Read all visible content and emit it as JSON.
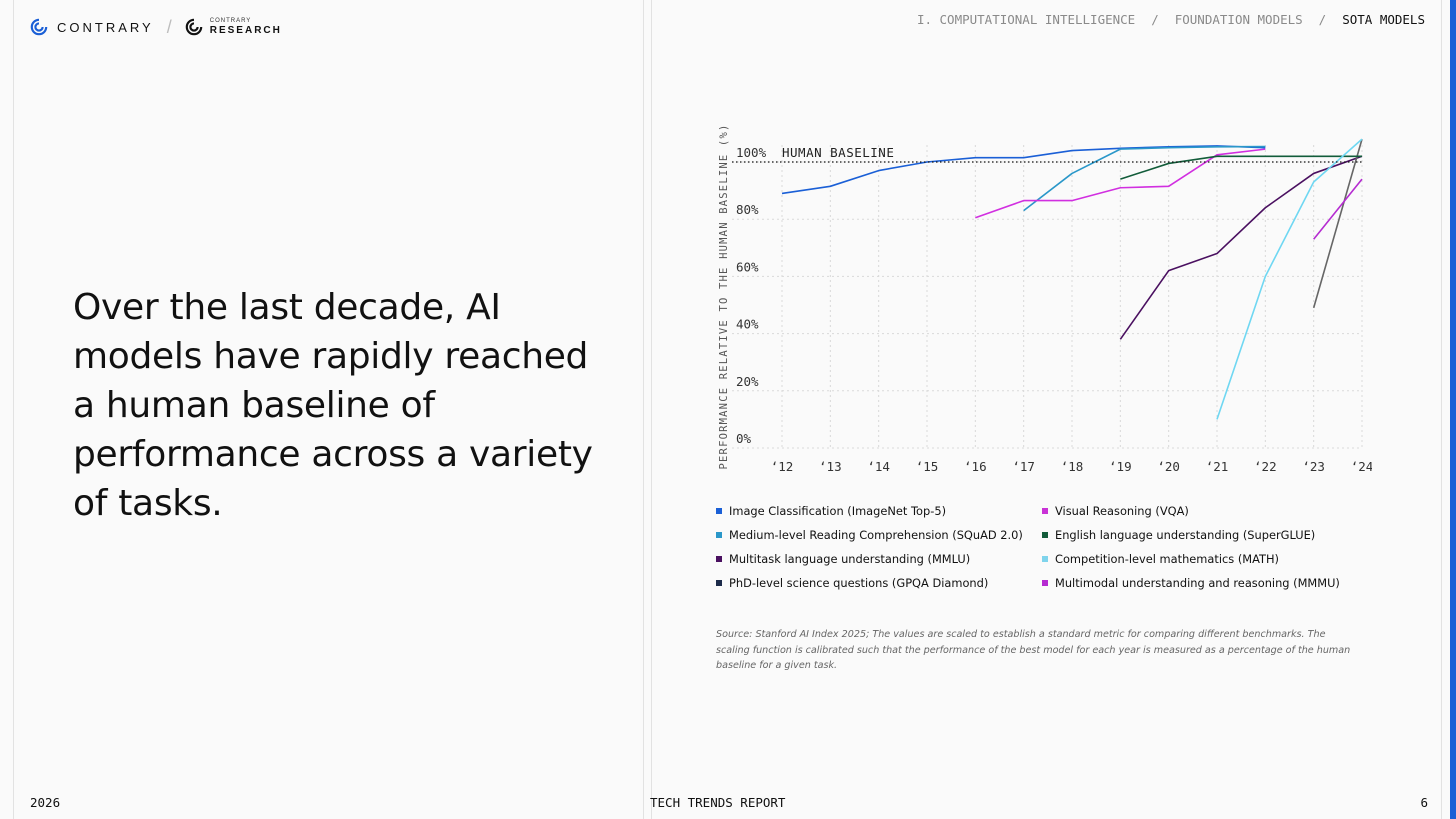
{
  "brand": {
    "name": "CONTRARY",
    "sub_top": "CONTRARY",
    "sub_bottom": "RESEARCH"
  },
  "breadcrumb": [
    {
      "label": "I. COMPUTATIONAL INTELLIGENCE",
      "current": false
    },
    {
      "label": "FOUNDATION MODELS",
      "current": false
    },
    {
      "label": "SOTA MODELS",
      "current": true
    }
  ],
  "breadcrumb_separator": "/",
  "headline": "Over the last decade, AI models have rapidly reached a human baseline of performance across a variety of tasks.",
  "chart_data": {
    "type": "line",
    "ylabel": "PERFORMANCE RELATIVE TO THE HUMAN BASELINE (%)",
    "xlabel": "",
    "x_ticks": [
      "‘12",
      "‘13",
      "‘14",
      "‘15",
      "‘16",
      "‘17",
      "‘18",
      "‘19",
      "‘20",
      "‘21",
      "‘22",
      "‘23",
      "‘24"
    ],
    "xlim": [
      2012,
      2024
    ],
    "y_ticks": [
      "0%",
      "20%",
      "40%",
      "60%",
      "80%",
      "100%"
    ],
    "ylim": [
      0,
      100
    ],
    "grid": true,
    "baseline": {
      "value": 100,
      "label": "HUMAN BASELINE"
    },
    "series": [
      {
        "name": "Image Classification (ImageNet Top-5)",
        "color": "#1a5fd6",
        "x": [
          2012,
          2013,
          2014,
          2015,
          2016,
          2017,
          2018,
          2019,
          2020,
          2021,
          2022
        ],
        "y": [
          89,
          91.5,
          97,
          100,
          101.5,
          101.5,
          104,
          104.8,
          105.3,
          105.6,
          105
        ]
      },
      {
        "name": "Medium-level Reading Comprehension (SQuAD 2.0)",
        "color": "#2a97c9",
        "x": [
          2017,
          2018,
          2019,
          2020,
          2021,
          2022
        ],
        "y": [
          83,
          96,
          104.5,
          105,
          105.3,
          105.4
        ]
      },
      {
        "name": "Multitask language understanding (MMLU)",
        "color": "#4a1060",
        "x": [
          2019,
          2020,
          2021,
          2022,
          2023,
          2024
        ],
        "y": [
          38,
          62,
          68,
          84,
          96,
          102
        ]
      },
      {
        "name": "PhD-level science questions (GPQA Diamond)",
        "color": "#666666",
        "x": [
          2023,
          2024
        ],
        "y": [
          49,
          108
        ]
      },
      {
        "name": "Visual Reasoning (VQA)",
        "color": "#d12fe0",
        "x": [
          2016,
          2017,
          2018,
          2019,
          2020,
          2021,
          2022
        ],
        "y": [
          80.5,
          86.5,
          86.5,
          91,
          91.5,
          102.5,
          104.5
        ]
      },
      {
        "name": "English language understanding (SuperGLUE)",
        "color": "#125c3a",
        "x": [
          2019,
          2020,
          2021,
          2022,
          2023,
          2024
        ],
        "y": [
          94,
          99.5,
          102,
          102,
          102,
          102
        ]
      },
      {
        "name": "Competition-level mathematics (MATH)",
        "color": "#6fd7f2",
        "x": [
          2021,
          2022,
          2023,
          2024
        ],
        "y": [
          10,
          60,
          93,
          108
        ]
      },
      {
        "name": "Multimodal understanding and reasoning (MMMU)",
        "color": "#b52bd1",
        "x": [
          2023,
          2024
        ],
        "y": [
          73,
          94
        ]
      }
    ]
  },
  "legend": [
    {
      "label": "Image Classification (ImageNet Top-5)",
      "color": "#1a5fd6"
    },
    {
      "label": "Visual Reasoning (VQA)",
      "color": "#c932d6"
    },
    {
      "label": "Medium-level Reading Comprehension (SQuAD 2.0)",
      "color": "#2a97c9"
    },
    {
      "label": "English language understanding (SuperGLUE)",
      "color": "#125c3a"
    },
    {
      "label": "Multitask language understanding (MMLU)",
      "color": "#4a1060"
    },
    {
      "label": "Competition-level mathematics (MATH)",
      "color": "#7fd4ec"
    },
    {
      "label": "PhD-level science questions (GPQA Diamond)",
      "color": "#1c2b4a"
    },
    {
      "label": "Multimodal understanding and reasoning (MMMU)",
      "color": "#b52bd1"
    }
  ],
  "source_note": "Source: Stanford AI Index 2025; The values are scaled to establish a standard metric for comparing different benchmarks. The scaling function is calibrated such that the performance of the best model for each year is measured as a percentage of the human baseline for a given task.",
  "footer": {
    "year": "2026",
    "report": "TECH TRENDS REPORT",
    "page": "6"
  }
}
